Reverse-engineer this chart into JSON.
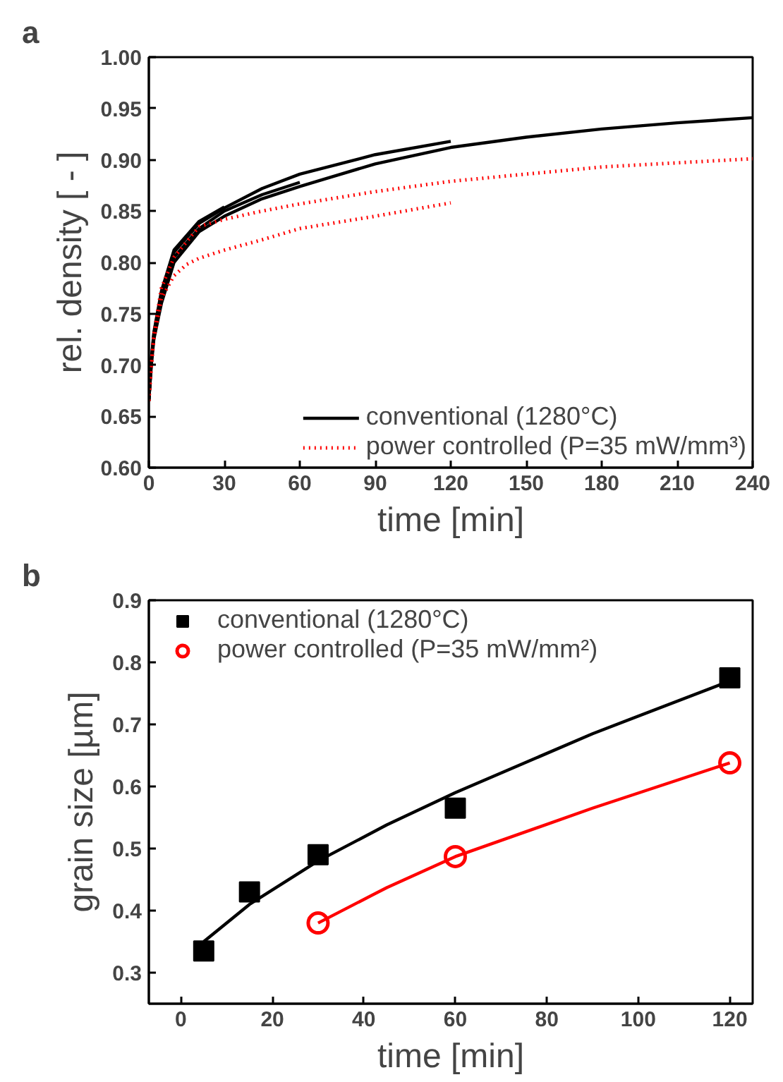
{
  "chart_data": [
    {
      "type": "line",
      "title": "a",
      "xlabel": "time [min]",
      "ylabel": "rel. density [ - ]",
      "xlim": [
        0,
        240
      ],
      "ylim": [
        0.6,
        1.0
      ],
      "xticks": [
        0,
        30,
        60,
        90,
        120,
        150,
        180,
        210,
        240
      ],
      "yticks": [
        {
          "value": 0.6,
          "label": "0.60"
        },
        0.65,
        {
          "value": 0.7,
          "label": "0.70"
        },
        0.75,
        {
          "value": 0.8,
          "label": "0.80"
        },
        0.85,
        {
          "value": 0.9,
          "label": "0.90"
        },
        0.95,
        {
          "value": 1.0,
          "label": "1.00"
        }
      ],
      "legend": "bottom",
      "grid": false,
      "series": [
        {
          "name": "conventional (1280°C)",
          "color": "#000000",
          "line_style": "solid",
          "x": [
            0,
            1,
            2,
            5,
            10,
            20,
            30,
            45,
            60,
            90,
            120,
            150,
            180,
            210,
            240
          ],
          "values": [
            0.665,
            0.7,
            0.725,
            0.76,
            0.8,
            0.83,
            0.845,
            0.862,
            0.874,
            0.896,
            0.912,
            0.922,
            0.93,
            0.936,
            0.941
          ]
        },
        {
          "color": "#000000",
          "line_style": "solid",
          "x": [
            0,
            1,
            2,
            5,
            10,
            20,
            30,
            45,
            60,
            90,
            120
          ],
          "values": [
            0.665,
            0.705,
            0.73,
            0.77,
            0.81,
            0.838,
            0.853,
            0.872,
            0.886,
            0.905,
            0.918
          ]
        },
        {
          "color": "#000000",
          "line_style": "solid",
          "x": [
            0,
            1,
            2,
            5,
            10,
            20,
            30,
            45,
            60
          ],
          "values": [
            0.665,
            0.703,
            0.728,
            0.767,
            0.805,
            0.833,
            0.85,
            0.866,
            0.878
          ]
        },
        {
          "color": "#000000",
          "line_style": "solid",
          "x": [
            0,
            1,
            2,
            5,
            10,
            20,
            30
          ],
          "values": [
            0.665,
            0.706,
            0.732,
            0.772,
            0.812,
            0.84,
            0.854
          ]
        },
        {
          "name": "power controlled (P=35 mW/mm³)",
          "color": "#ff0000",
          "line_style": "dotted",
          "x": [
            0,
            1,
            2,
            5,
            10,
            15,
            20,
            30,
            45,
            60,
            90,
            120,
            150,
            180,
            210,
            240
          ],
          "values": [
            0.665,
            0.7,
            0.73,
            0.775,
            0.805,
            0.82,
            0.835,
            0.842,
            0.85,
            0.857,
            0.869,
            0.879,
            0.886,
            0.893,
            0.897,
            0.901
          ]
        },
        {
          "color": "#ff0000",
          "line_style": "dotted",
          "x": [
            0,
            1,
            2,
            5,
            10,
            15,
            20,
            30,
            45,
            60,
            90,
            120
          ],
          "values": [
            0.665,
            0.7,
            0.725,
            0.765,
            0.787,
            0.798,
            0.804,
            0.812,
            0.822,
            0.833,
            0.845,
            0.858
          ]
        }
      ]
    },
    {
      "type": "scatter",
      "title": "b",
      "xlabel": "time [min]",
      "ylabel": "grain size [µm]",
      "xlim": [
        -7,
        125
      ],
      "ylim": [
        0.25,
        0.9
      ],
      "xticks": [
        0,
        20,
        40,
        60,
        80,
        100,
        120
      ],
      "yticks": [
        0.3,
        0.4,
        0.5,
        0.6,
        0.7,
        0.8,
        0.9
      ],
      "legend": "top left",
      "grid": false,
      "series": [
        {
          "name": "conventional (1280°C)",
          "color": "#000000",
          "marker": "square",
          "x": [
            5,
            15,
            30,
            60,
            120
          ],
          "values": [
            0.335,
            0.43,
            0.49,
            0.565,
            0.775
          ]
        },
        {
          "name": "power controlled (P=35 mW/mm²)",
          "color": "#ff0000",
          "marker": "circle",
          "x": [
            30,
            60,
            120
          ],
          "values": [
            0.38,
            0.487,
            0.638
          ]
        },
        {
          "type": "line",
          "color": "#000000",
          "x": [
            5,
            15,
            30,
            45,
            60,
            90,
            120
          ],
          "values": [
            0.35,
            0.41,
            0.48,
            0.538,
            0.59,
            0.685,
            0.77
          ]
        },
        {
          "type": "line",
          "color": "#ff0000",
          "x": [
            30,
            45,
            60,
            90,
            120
          ],
          "values": [
            0.38,
            0.437,
            0.487,
            0.565,
            0.638
          ]
        }
      ]
    }
  ]
}
